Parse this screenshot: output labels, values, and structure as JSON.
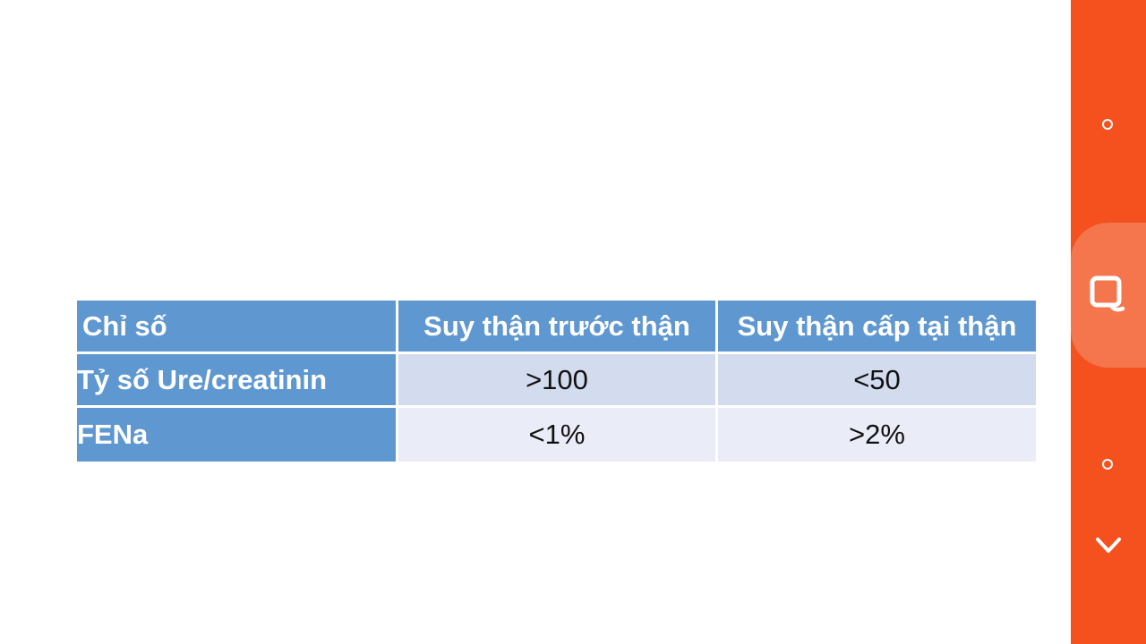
{
  "table": {
    "headers": [
      "Chỉ số",
      "Suy thận trước thận",
      "Suy thận cấp tại thận"
    ],
    "rows": [
      [
        "Tỷ số Ure/creatinin",
        ">100",
        "<50"
      ],
      [
        "FENa",
        "<1%",
        ">2%"
      ]
    ]
  },
  "side_rail": {
    "icons": [
      "circle-icon",
      "search-icon",
      "circle-icon",
      "chevron-down-icon"
    ],
    "accent": "#f4511e",
    "bubble": "#f5764d"
  },
  "colors": {
    "header_bg": "#5f97d0",
    "band1": "#d3dcef",
    "band2": "#eaedf7"
  }
}
